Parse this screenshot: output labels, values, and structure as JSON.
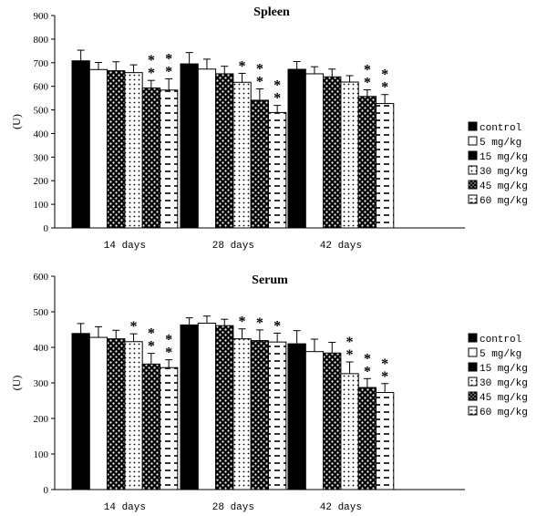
{
  "chart_data": [
    {
      "type": "bar",
      "title": "Spleen",
      "ylabel": "(U)",
      "xlabel": "",
      "ylim": [
        0,
        900
      ],
      "yticks": [
        "0",
        "100",
        "200",
        "300",
        "400",
        "500",
        "600",
        "700",
        "800",
        "900"
      ],
      "categories": [
        "14 days",
        "28 days",
        "42 days"
      ],
      "series": [
        {
          "name": "control",
          "values": [
            708,
            695,
            672
          ],
          "errors": [
            45,
            48,
            33
          ],
          "stars": [
            0,
            0,
            0
          ]
        },
        {
          "name": "5 mg/kg",
          "values": [
            671,
            673,
            653
          ],
          "errors": [
            30,
            42,
            30
          ],
          "stars": [
            0,
            0,
            0
          ]
        },
        {
          "name": "15 mg/kg",
          "values": [
            666,
            653,
            640
          ],
          "errors": [
            38,
            32,
            33
          ],
          "stars": [
            0,
            0,
            0
          ]
        },
        {
          "name": "30 mg/kg",
          "values": [
            658,
            617,
            618
          ],
          "errors": [
            33,
            38,
            27
          ],
          "stars": [
            0,
            1,
            0
          ]
        },
        {
          "name": "45 mg/kg",
          "values": [
            593,
            541,
            557
          ],
          "errors": [
            32,
            48,
            28
          ],
          "stars": [
            2,
            2,
            2
          ]
        },
        {
          "name": "60 mg/kg",
          "values": [
            584,
            489,
            527
          ],
          "errors": [
            48,
            30,
            38
          ],
          "stars": [
            2,
            2,
            2
          ]
        }
      ],
      "star_symbol": "*"
    },
    {
      "type": "bar",
      "title": "Serum",
      "ylabel": "(U)",
      "xlabel": "",
      "ylim": [
        0,
        600
      ],
      "yticks": [
        "0",
        "100",
        "200",
        "300",
        "400",
        "500",
        "600"
      ],
      "categories": [
        "14 days",
        "28 days",
        "42 days"
      ],
      "series": [
        {
          "name": "control",
          "values": [
            439,
            463,
            410
          ],
          "errors": [
            28,
            20,
            37
          ],
          "stars": [
            0,
            0,
            0
          ]
        },
        {
          "name": "5 mg/kg",
          "values": [
            428,
            468,
            388
          ],
          "errors": [
            30,
            20,
            35
          ],
          "stars": [
            0,
            0,
            0
          ]
        },
        {
          "name": "15 mg/kg",
          "values": [
            424,
            461,
            384
          ],
          "errors": [
            24,
            18,
            30
          ],
          "stars": [
            0,
            0,
            0
          ]
        },
        {
          "name": "30 mg/kg",
          "values": [
            416,
            424,
            326
          ],
          "errors": [
            22,
            28,
            33
          ],
          "stars": [
            1,
            1,
            2
          ]
        },
        {
          "name": "45 mg/kg",
          "values": [
            353,
            419,
            287
          ],
          "errors": [
            30,
            30,
            25
          ],
          "stars": [
            2,
            1,
            2
          ]
        },
        {
          "name": "60 mg/kg",
          "values": [
            343,
            415,
            273
          ],
          "errors": [
            22,
            25,
            25
          ],
          "stars": [
            2,
            1,
            2
          ]
        }
      ],
      "star_symbol": "*"
    }
  ]
}
